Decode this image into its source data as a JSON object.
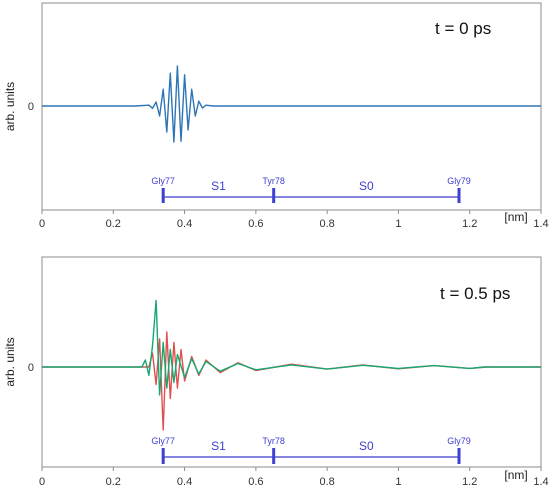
{
  "chart_data": [
    {
      "type": "line",
      "annotation": "t = 0 ps",
      "xlabel": "[nm]",
      "ylabel": "arb. units",
      "xlim": [
        0,
        1.4
      ],
      "x_ticks": [
        "0",
        "0.2",
        "0.4",
        "0.6",
        "0.8",
        "1",
        "1.2",
        "1.4"
      ],
      "y_ticks": [
        "0"
      ],
      "grid": false,
      "colors": {
        "wave": "#2e75b6",
        "axis": "#8c8c8c",
        "marker": "#3f3fd0"
      },
      "series": [
        {
          "x": [
            0.0,
            0.26,
            0.3,
            0.31,
            0.32,
            0.33,
            0.34,
            0.35,
            0.36,
            0.37,
            0.38,
            0.39,
            0.4,
            0.41,
            0.42,
            0.43,
            0.44,
            0.45,
            0.46,
            0.48,
            1.4
          ],
          "y": [
            0,
            0,
            0.02,
            -0.06,
            0.1,
            -0.25,
            0.42,
            -0.65,
            0.82,
            -0.9,
            1.0,
            -0.88,
            0.78,
            -0.6,
            0.42,
            -0.25,
            0.12,
            -0.05,
            0.02,
            0,
            0
          ]
        }
      ],
      "markers": [
        {
          "label": "Gly77",
          "x": 0.34
        },
        {
          "label": "Tyr78",
          "x": 0.65
        },
        {
          "label": "Gly79",
          "x": 1.17
        }
      ],
      "segments": [
        {
          "label": "S1",
          "from": 0.34,
          "to": 0.65
        },
        {
          "label": "S0",
          "from": 0.65,
          "to": 1.17
        }
      ]
    },
    {
      "type": "line",
      "annotation": "t = 0.5 ps",
      "xlabel": "[nm]",
      "ylabel": "arb. units",
      "xlim": [
        0,
        1.4
      ],
      "x_ticks": [
        "0",
        "0.2",
        "0.4",
        "0.6",
        "0.8",
        "1",
        "1.2",
        "1.4"
      ],
      "y_ticks": [
        "0"
      ],
      "grid": false,
      "colors": {
        "wave_a": "#e05050",
        "wave_b": "#16a870",
        "axis": "#8c8c8c",
        "marker": "#3f3fd0"
      },
      "series": [
        {
          "x": [
            0.0,
            0.3,
            0.31,
            0.32,
            0.33,
            0.34,
            0.35,
            0.36,
            0.37,
            0.38,
            0.39,
            0.4,
            0.42,
            0.44,
            0.46,
            0.5,
            0.55,
            0.6,
            0.7,
            0.8,
            0.9,
            1.0,
            1.1,
            1.2,
            1.25,
            1.4
          ],
          "y": [
            0,
            0,
            0.2,
            -0.25,
            0.4,
            -0.9,
            0.5,
            -0.45,
            0.35,
            -0.3,
            0.25,
            -0.2,
            0.15,
            -0.12,
            0.1,
            -0.08,
            0.06,
            -0.05,
            0.04,
            -0.03,
            0.03,
            -0.025,
            0.02,
            -0.02,
            0,
            0
          ]
        },
        {
          "x": [
            0.0,
            0.28,
            0.29,
            0.3,
            0.31,
            0.32,
            0.33,
            0.34,
            0.35,
            0.36,
            0.37,
            0.38,
            0.4,
            0.42,
            0.44,
            0.46,
            0.5,
            0.55,
            0.6,
            0.7,
            0.8,
            0.9,
            1.0,
            1.1,
            1.2,
            1.24,
            1.4
          ],
          "y": [
            0,
            0,
            0.1,
            -0.12,
            0.3,
            0.95,
            -0.4,
            0.35,
            -0.3,
            0.25,
            -0.22,
            0.18,
            -0.15,
            0.12,
            -0.1,
            0.08,
            -0.06,
            0.05,
            -0.04,
            0.03,
            -0.03,
            0.025,
            -0.02,
            0.02,
            -0.02,
            0,
            0
          ]
        }
      ],
      "markers": [
        {
          "label": "Gly77",
          "x": 0.34
        },
        {
          "label": "Tyr78",
          "x": 0.65
        },
        {
          "label": "Gly79",
          "x": 1.17
        }
      ],
      "segments": [
        {
          "label": "S1",
          "from": 0.34,
          "to": 0.65
        },
        {
          "label": "S0",
          "from": 0.65,
          "to": 1.17
        }
      ]
    }
  ]
}
